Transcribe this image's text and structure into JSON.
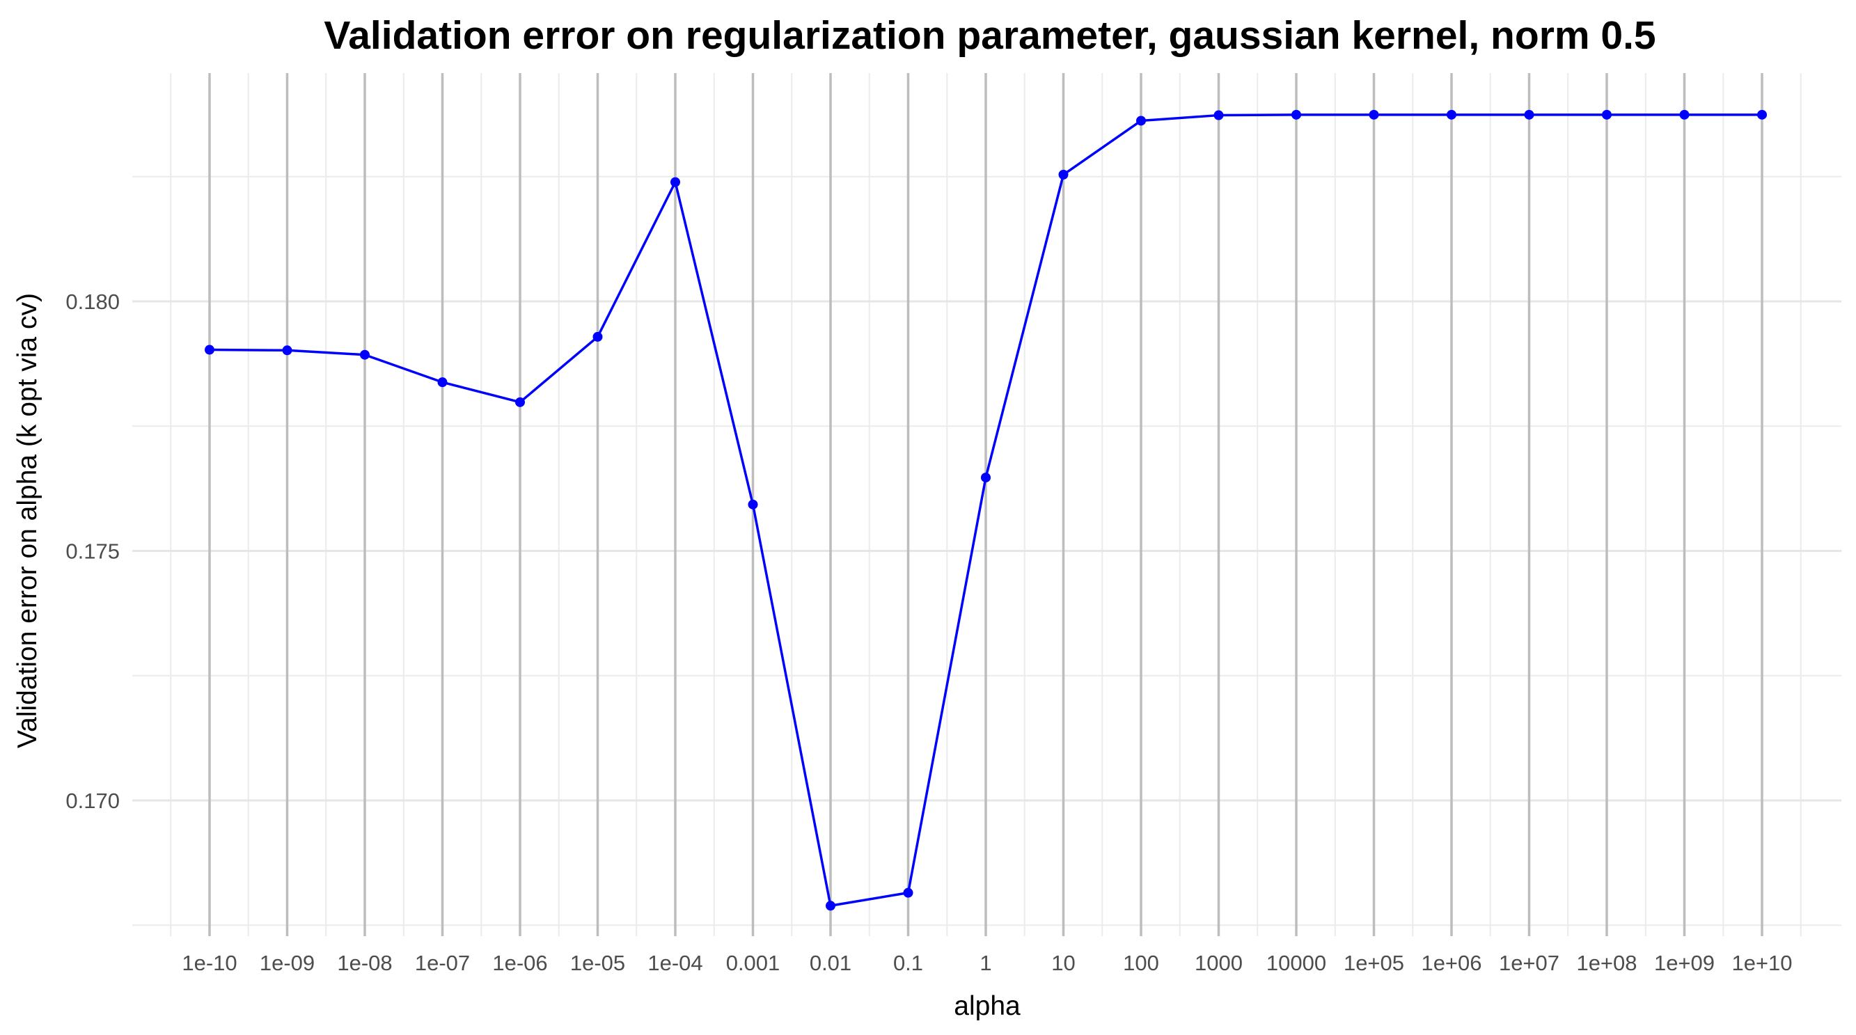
{
  "chart_data": {
    "type": "line",
    "title": "Validation error on regularization parameter, gaussian kernel, norm 0.5",
    "xlabel": "alpha",
    "ylabel": "Validation error on alpha (k opt via cv)",
    "categories": [
      "1e-10",
      "1e-09",
      "1e-08",
      "1e-07",
      "1e-06",
      "1e-05",
      "1e-04",
      "0.001",
      "0.01",
      "0.1",
      "1",
      "10",
      "100",
      "1000",
      "10000",
      "1e+05",
      "1e+06",
      "1e+07",
      "1e+08",
      "1e+09",
      "1e+10"
    ],
    "series": [
      {
        "values": [
          0.17903,
          0.17902,
          0.17893,
          0.17838,
          0.17798,
          0.17929,
          0.18239,
          0.17593,
          0.16789,
          0.16815,
          0.17647,
          0.18254,
          0.18362,
          0.18373,
          0.18374,
          0.18374,
          0.18374,
          0.18374,
          0.18374,
          0.18374,
          0.18374
        ],
        "color": "#0000ff"
      }
    ],
    "ylim": [
      0.1675,
      0.1845
    ],
    "yticks": [
      0.17,
      0.175,
      0.18
    ],
    "ytick_labels": [
      "0.170",
      "0.175",
      "0.180"
    ],
    "grid": true,
    "legend": "none"
  }
}
